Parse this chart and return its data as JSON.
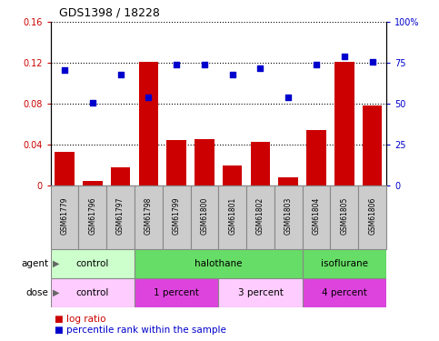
{
  "title": "GDS1398 / 18228",
  "samples": [
    "GSM61779",
    "GSM61796",
    "GSM61797",
    "GSM61798",
    "GSM61799",
    "GSM61800",
    "GSM61801",
    "GSM61802",
    "GSM61803",
    "GSM61804",
    "GSM61805",
    "GSM61806"
  ],
  "log_ratio": [
    0.033,
    0.005,
    0.018,
    0.121,
    0.045,
    0.046,
    0.02,
    0.043,
    0.008,
    0.055,
    0.121,
    0.079
  ],
  "percentile_rank_pct": [
    71,
    51,
    68,
    54,
    74,
    74,
    68,
    72,
    54,
    74,
    79,
    76
  ],
  "bar_color": "#cc0000",
  "dot_color": "#0000cc",
  "ylim_left": [
    0,
    0.16
  ],
  "ylim_right": [
    0,
    100
  ],
  "yticks_left": [
    0,
    0.04,
    0.08,
    0.12,
    0.16
  ],
  "yticks_right": [
    0,
    25,
    50,
    75,
    100
  ],
  "ytick_labels_left": [
    "0",
    "0.04",
    "0.08",
    "0.12",
    "0.16"
  ],
  "ytick_labels_right": [
    "0",
    "25",
    "50",
    "75",
    "100%"
  ],
  "agent_groups": [
    {
      "label": "control",
      "start": 0,
      "end": 3,
      "color": "#ccffcc"
    },
    {
      "label": "halothane",
      "start": 3,
      "end": 9,
      "color": "#66dd66"
    },
    {
      "label": "isoflurane",
      "start": 9,
      "end": 12,
      "color": "#66dd66"
    }
  ],
  "dose_groups": [
    {
      "label": "control",
      "start": 0,
      "end": 3,
      "color": "#ffccff"
    },
    {
      "label": "1 percent",
      "start": 3,
      "end": 6,
      "color": "#dd44dd"
    },
    {
      "label": "3 percent",
      "start": 6,
      "end": 9,
      "color": "#ffccff"
    },
    {
      "label": "4 percent",
      "start": 9,
      "end": 12,
      "color": "#dd44dd"
    }
  ],
  "legend_log_ratio": "log ratio",
  "legend_percentile": "percentile rank within the sample",
  "agent_label": "agent",
  "dose_label": "dose",
  "sample_box_color": "#cccccc",
  "sample_box_edge": "#888888",
  "fig_width": 4.83,
  "fig_height": 3.75,
  "dpi": 100
}
